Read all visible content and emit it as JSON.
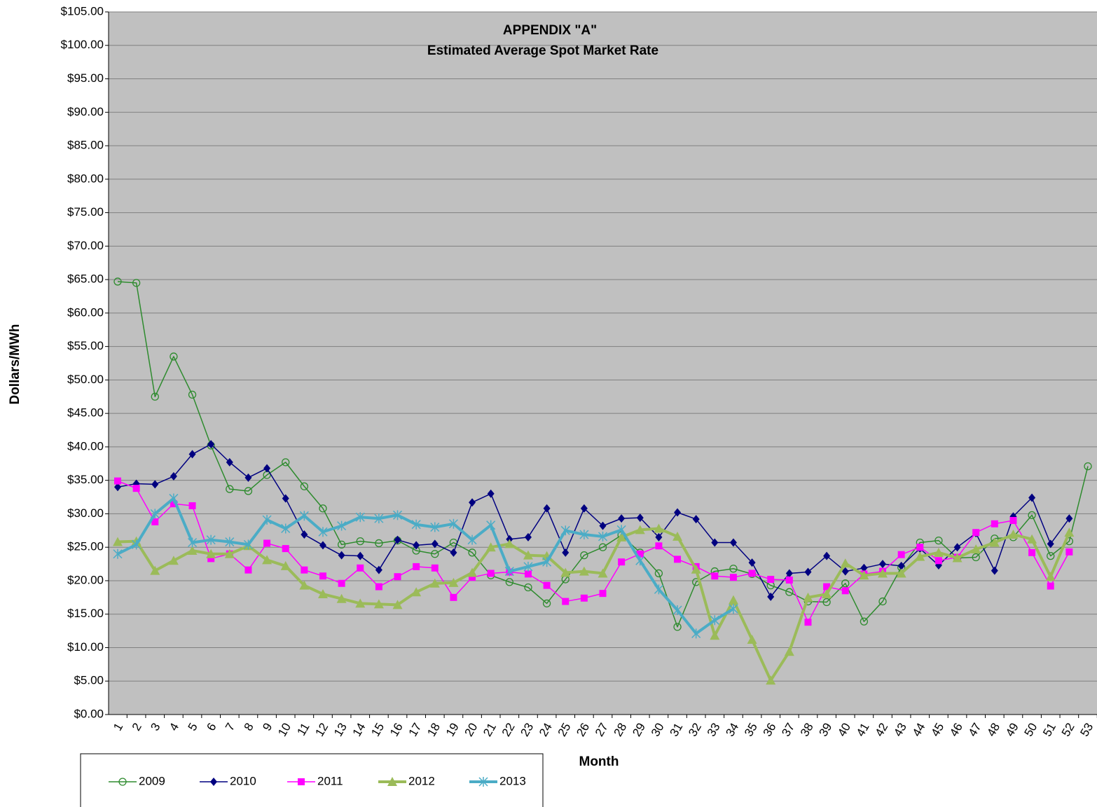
{
  "chart_data": {
    "type": "line",
    "title": "APPENDIX \"A\"",
    "subtitle": "Estimated Average Spot Market Rate",
    "y_label": "Dollars/MWh",
    "x_label": "Month",
    "categories": [
      "1",
      "2",
      "3",
      "4",
      "5",
      "6",
      "7",
      "8",
      "9",
      "10",
      "11",
      "12",
      "13",
      "14",
      "15",
      "16",
      "17",
      "18",
      "19",
      "20",
      "21",
      "22",
      "23",
      "24",
      "25",
      "26",
      "27",
      "28",
      "29",
      "30",
      "31",
      "32",
      "33",
      "34",
      "35",
      "36",
      "37",
      "38",
      "39",
      "40",
      "41",
      "42",
      "43",
      "44",
      "45",
      "46",
      "47",
      "48",
      "49",
      "50",
      "51",
      "52",
      "53"
    ],
    "ylim": [
      0,
      105
    ],
    "yticks": [
      {
        "value": 0,
        "label": "$0.00"
      },
      {
        "value": 5,
        "label": "$5.00"
      },
      {
        "value": 10,
        "label": "$10.00"
      },
      {
        "value": 15,
        "label": "$15.00"
      },
      {
        "value": 20,
        "label": "$20.00"
      },
      {
        "value": 25,
        "label": "$25.00"
      },
      {
        "value": 30,
        "label": "$30.00"
      },
      {
        "value": 35,
        "label": "$35.00"
      },
      {
        "value": 40,
        "label": "$40.00"
      },
      {
        "value": 45,
        "label": "$45.00"
      },
      {
        "value": 50,
        "label": "$50.00"
      },
      {
        "value": 55,
        "label": "$55.00"
      },
      {
        "value": 60,
        "label": "$60.00"
      },
      {
        "value": 65,
        "label": "$65.00"
      },
      {
        "value": 70,
        "label": "$70.00"
      },
      {
        "value": 75,
        "label": "$75.00"
      },
      {
        "value": 80,
        "label": "$80.00"
      },
      {
        "value": 85,
        "label": "$85.00"
      },
      {
        "value": 90,
        "label": "$90.00"
      },
      {
        "value": 95,
        "label": "$95.00"
      },
      {
        "value": 100,
        "label": "$100.00"
      },
      {
        "value": 105,
        "label": "$105.00"
      }
    ],
    "grid": true,
    "legend": "bottom",
    "series": [
      {
        "name": "2009",
        "color": "#2e8b2e",
        "marker": "circle",
        "line_width": 1.5,
        "values": [
          64.7,
          64.5,
          47.5,
          53.5,
          47.8,
          40.2,
          33.7,
          33.4,
          35.8,
          37.7,
          34.1,
          30.8,
          25.4,
          25.9,
          25.6,
          26.0,
          24.5,
          24.0,
          25.7,
          24.2,
          20.8,
          19.8,
          19.0,
          16.6,
          20.2,
          23.8,
          25.0,
          26.8,
          24.2,
          21.1,
          13.1,
          19.8,
          21.4,
          21.8,
          21.0,
          19.3,
          18.3,
          16.9,
          16.8,
          19.6,
          13.9,
          16.9,
          22.0,
          25.7,
          26.0,
          23.4,
          23.5,
          26.3,
          26.5,
          29.8,
          23.7,
          25.9,
          37.1
        ]
      },
      {
        "name": "2010",
        "color": "#000080",
        "marker": "diamond",
        "line_width": 1.5,
        "values": [
          34.0,
          34.5,
          34.4,
          35.6,
          38.9,
          40.4,
          37.7,
          35.4,
          36.8,
          32.3,
          26.9,
          25.3,
          23.8,
          23.7,
          21.6,
          26.1,
          25.3,
          25.5,
          24.2,
          31.7,
          33.0,
          26.2,
          26.5,
          30.8,
          24.2,
          30.8,
          28.2,
          29.3,
          29.4,
          26.5,
          30.2,
          29.2,
          25.7,
          25.7,
          22.7,
          17.6,
          21.1,
          21.3,
          23.7,
          21.4,
          21.9,
          22.5,
          22.2,
          24.8,
          22.3,
          25.0,
          27.1,
          21.5,
          29.6,
          32.4,
          25.5,
          29.3,
          null
        ]
      },
      {
        "name": "2011",
        "color": "#ff00ff",
        "marker": "square",
        "line_width": 1.5,
        "values": [
          34.9,
          33.8,
          28.8,
          31.5,
          31.2,
          23.3,
          24.0,
          21.6,
          25.6,
          24.8,
          21.6,
          20.7,
          19.6,
          21.9,
          19.1,
          20.6,
          22.1,
          21.9,
          17.5,
          20.5,
          21.1,
          21.3,
          21.0,
          19.3,
          16.9,
          17.4,
          18.1,
          22.8,
          24.0,
          25.2,
          23.2,
          22.1,
          20.7,
          20.5,
          21.1,
          20.2,
          20.1,
          13.8,
          19.1,
          18.5,
          21.0,
          21.4,
          23.9,
          25.0,
          23.0,
          23.5,
          27.2,
          28.5,
          29.0,
          24.2,
          19.2,
          24.3,
          null
        ]
      },
      {
        "name": "2012",
        "color": "#9bbb59",
        "marker": "triangle",
        "line_width": 4,
        "values": [
          25.8,
          25.9,
          21.5,
          23.0,
          24.5,
          24.0,
          24.0,
          25.2,
          23.1,
          22.2,
          19.3,
          18.0,
          17.3,
          16.6,
          16.5,
          16.4,
          18.3,
          19.6,
          19.7,
          21.2,
          25.0,
          25.5,
          23.8,
          23.7,
          21.2,
          21.4,
          21.1,
          26.5,
          27.6,
          27.8,
          26.6,
          21.7,
          11.8,
          17.1,
          11.2,
          5.1,
          9.4,
          17.5,
          18.0,
          22.6,
          20.8,
          21.1,
          21.1,
          23.6,
          24.2,
          23.4,
          24.7,
          25.7,
          26.9,
          26.2,
          20.6,
          27.2,
          null
        ]
      },
      {
        "name": "2013",
        "color": "#4bacc6",
        "marker": "star",
        "line_width": 4,
        "values": [
          24.0,
          25.4,
          30.0,
          32.3,
          25.7,
          26.1,
          25.8,
          25.4,
          29.1,
          27.8,
          29.7,
          27.3,
          28.2,
          29.5,
          29.3,
          29.8,
          28.4,
          28.0,
          28.5,
          26.1,
          28.3,
          21.4,
          22.1,
          22.8,
          27.5,
          26.9,
          26.6,
          27.6,
          23.0,
          18.7,
          15.6,
          12.1,
          14.1,
          15.8,
          null,
          null,
          null,
          null,
          null,
          null,
          null,
          null,
          null,
          null,
          null,
          null,
          null,
          null,
          null,
          null,
          null,
          null,
          null
        ]
      }
    ]
  }
}
